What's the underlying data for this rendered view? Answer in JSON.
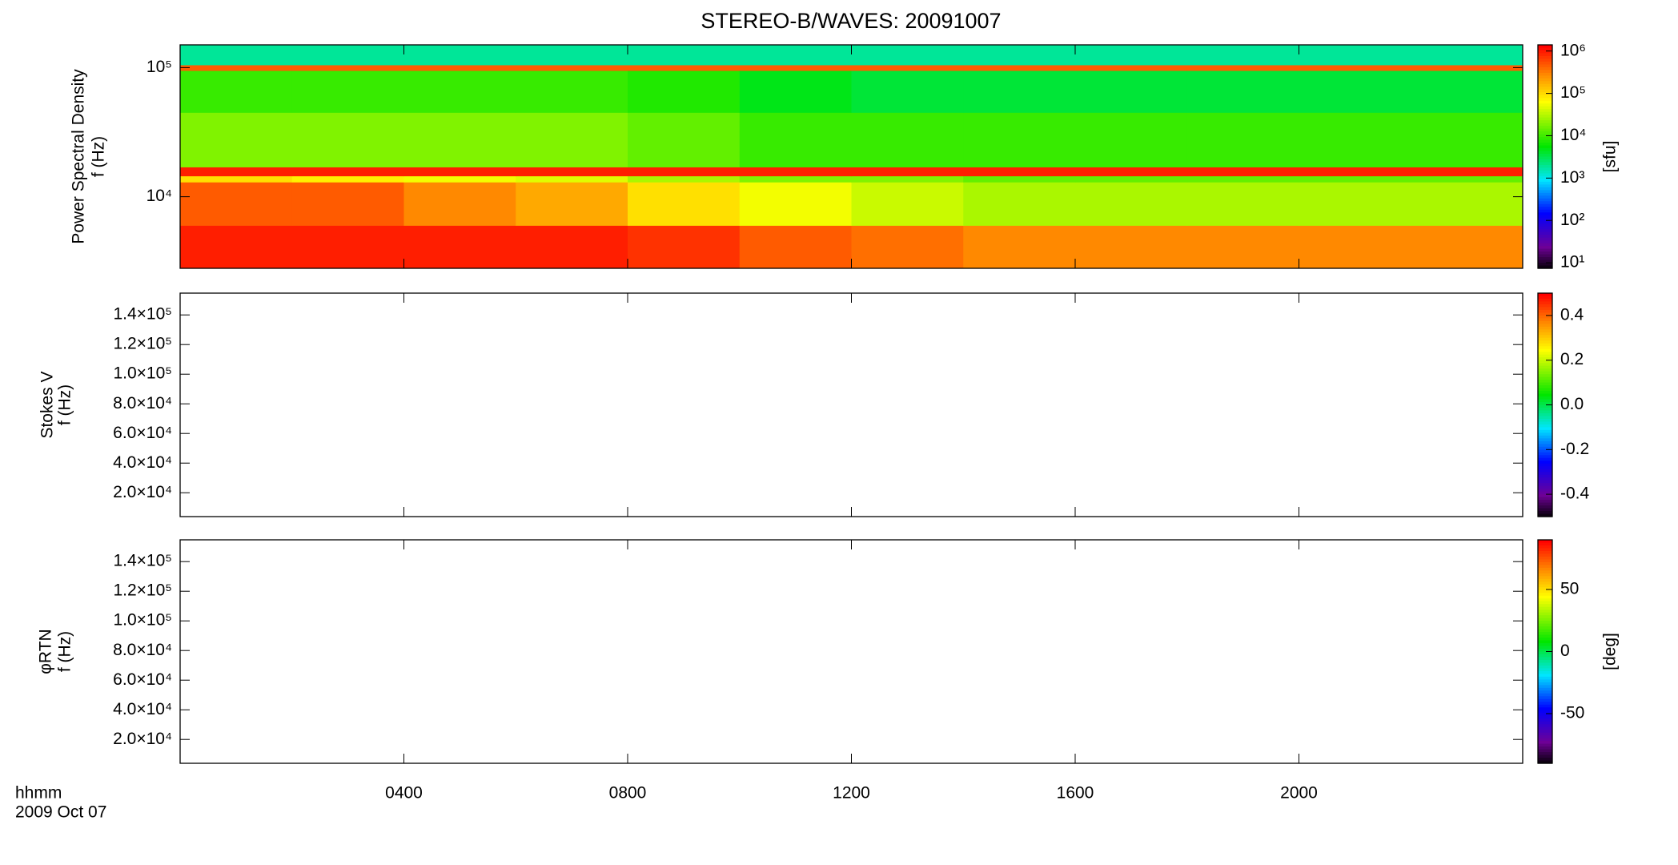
{
  "chart_data": [
    {
      "type": "heatmap",
      "title": "STEREO-B/WAVES: 20091007",
      "y_label": [
        "Power Spectral Density",
        "f (Hz)"
      ],
      "ylog": true,
      "ylim": [
        2790,
        150000
      ],
      "yticks": [
        {
          "value": 10000,
          "label": "10⁴"
        },
        {
          "value": 100000,
          "label": "10⁵"
        }
      ],
      "x_edges": [
        0,
        200,
        400,
        600,
        800,
        1000,
        1200,
        1400,
        1600,
        1800,
        2000,
        2200,
        2400
      ],
      "y_edges": [
        2790,
        6000,
        13000,
        14500,
        17000,
        45000,
        95000,
        105000,
        150000
      ],
      "z": [
        [
          1000000,
          1000000,
          1000000,
          1000000,
          800000,
          500000,
          400000,
          300000,
          300000,
          300000,
          300000,
          300000
        ],
        [
          500000,
          500000,
          300000,
          200000,
          100000,
          60000,
          40000,
          30000,
          30000,
          30000,
          30000,
          30000
        ],
        [
          100000,
          80000,
          60000,
          50000,
          30000,
          20000,
          20000,
          15000,
          15000,
          15000,
          15000,
          15000
        ],
        [
          1000000,
          1000000,
          1000000,
          1000000,
          1000000,
          1000000,
          1000000,
          1000000,
          1000000,
          1000000,
          1000000,
          1000000
        ],
        [
          20000,
          20000,
          20000,
          20000,
          15000,
          10000,
          10000,
          10000,
          10000,
          10000,
          10000,
          10000
        ],
        [
          10000,
          10000,
          10000,
          10000,
          8000,
          5000,
          4000,
          4000,
          4000,
          4000,
          4000,
          4000
        ],
        [
          500000,
          500000,
          500000,
          500000,
          500000,
          500000,
          500000,
          500000,
          500000,
          500000,
          500000,
          500000
        ],
        [
          2000,
          2000,
          2000,
          2000,
          2000,
          2000,
          2000,
          2000,
          2000,
          2000,
          2000,
          2000
        ]
      ],
      "zlog": true,
      "zlim": [
        7.4,
        1400000
      ],
      "zticks": [
        {
          "value": 10,
          "label": "10¹"
        },
        {
          "value": 100,
          "label": "10²"
        },
        {
          "value": 1000,
          "label": "10³"
        },
        {
          "value": 10000,
          "label": "10⁴"
        },
        {
          "value": 100000,
          "label": "10⁵"
        },
        {
          "value": 1000000,
          "label": "10⁶"
        }
      ],
      "colorbar_label": "[sfu]"
    },
    {
      "type": "heatmap",
      "y_label": [
        "Stokes V",
        "f (Hz)"
      ],
      "ylim": [
        3900,
        154700
      ],
      "yticks": [
        {
          "value": 20000,
          "label": "2.0×10⁴"
        },
        {
          "value": 40000,
          "label": "4.0×10⁴"
        },
        {
          "value": 60000,
          "label": "6.0×10⁴"
        },
        {
          "value": 80000,
          "label": "8.0×10⁴"
        },
        {
          "value": 100000,
          "label": "1.0×10⁵"
        },
        {
          "value": 120000,
          "label": "1.2×10⁵"
        },
        {
          "value": 140000,
          "label": "1.4×10⁵"
        }
      ],
      "zlim": [
        -0.5,
        0.5
      ],
      "zticks": [
        {
          "value": -0.4,
          "label": "-0.4"
        },
        {
          "value": -0.2,
          "label": "-0.2"
        },
        {
          "value": 0,
          "label": "0.0"
        },
        {
          "value": 0.2,
          "label": "0.2"
        },
        {
          "value": 0.4,
          "label": "0.4"
        }
      ]
    },
    {
      "type": "heatmap",
      "y_label": [
        "φRTN",
        "f (Hz)"
      ],
      "ylim": [
        3900,
        154700
      ],
      "yticks": [
        {
          "value": 20000,
          "label": "2.0×10⁴"
        },
        {
          "value": 40000,
          "label": "4.0×10⁴"
        },
        {
          "value": 60000,
          "label": "6.0×10⁴"
        },
        {
          "value": 80000,
          "label": "8.0×10⁴"
        },
        {
          "value": 100000,
          "label": "1.0×10⁵"
        },
        {
          "value": 120000,
          "label": "1.2×10⁵"
        },
        {
          "value": 140000,
          "label": "1.4×10⁵"
        }
      ],
      "zlim": [
        -90,
        90
      ],
      "zticks": [
        -50,
        0,
        50
      ],
      "colorbar_label": "[deg]",
      "xlim": [
        0,
        2400
      ],
      "xticks": [
        {
          "value": 400,
          "label": "0400"
        },
        {
          "value": 800,
          "label": "0800"
        },
        {
          "value": 1200,
          "label": "1200"
        },
        {
          "value": 1600,
          "label": "1600"
        },
        {
          "value": 2000,
          "label": "2000"
        }
      ],
      "x_label": [
        "hhmm",
        "2009 Oct 07"
      ]
    }
  ]
}
